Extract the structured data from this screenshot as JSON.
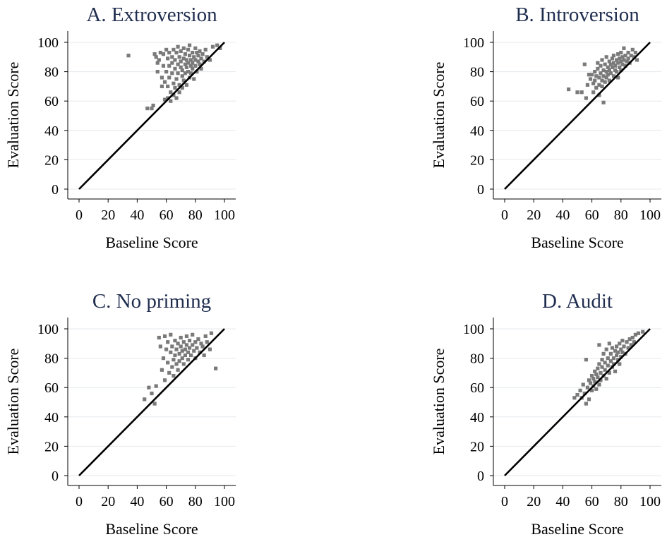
{
  "chart_data": [
    {
      "type": "scatter",
      "title": "A. Extroversion",
      "xlabel": "Baseline Score",
      "ylabel": "Evaluation Score",
      "xlim": [
        0,
        100
      ],
      "ylim": [
        0,
        100
      ],
      "xticks": [
        0,
        20,
        40,
        60,
        80,
        100
      ],
      "yticks": [
        0,
        20,
        40,
        60,
        80,
        100
      ],
      "grid": true,
      "reference_line": {
        "from": [
          0,
          0
        ],
        "to": [
          100,
          100
        ]
      },
      "points": [
        [
          34,
          91
        ],
        [
          47,
          55
        ],
        [
          50,
          55
        ],
        [
          51,
          57
        ],
        [
          52,
          92
        ],
        [
          53,
          90
        ],
        [
          54,
          86
        ],
        [
          54,
          80
        ],
        [
          55,
          88
        ],
        [
          56,
          93
        ],
        [
          57,
          70
        ],
        [
          57,
          76
        ],
        [
          58,
          92
        ],
        [
          58,
          84
        ],
        [
          59,
          61
        ],
        [
          59,
          73
        ],
        [
          60,
          80
        ],
        [
          60,
          95
        ],
        [
          61,
          62
        ],
        [
          61,
          70
        ],
        [
          61,
          89
        ],
        [
          62,
          84
        ],
        [
          62,
          76
        ],
        [
          62,
          93
        ],
        [
          63,
          66
        ],
        [
          63,
          60
        ],
        [
          64,
          86
        ],
        [
          64,
          79
        ],
        [
          64,
          90
        ],
        [
          65,
          72
        ],
        [
          65,
          64
        ],
        [
          65,
          95
        ],
        [
          66,
          82
        ],
        [
          66,
          88
        ],
        [
          66,
          69
        ],
        [
          67,
          75
        ],
        [
          67,
          93
        ],
        [
          67,
          62
        ],
        [
          68,
          85
        ],
        [
          68,
          79
        ],
        [
          68,
          97
        ],
        [
          69,
          90
        ],
        [
          69,
          71
        ],
        [
          69,
          66
        ],
        [
          70,
          83
        ],
        [
          70,
          87
        ],
        [
          70,
          94
        ],
        [
          71,
          77
        ],
        [
          71,
          81
        ],
        [
          71,
          69
        ],
        [
          72,
          89
        ],
        [
          72,
          96
        ],
        [
          72,
          74
        ],
        [
          73,
          85
        ],
        [
          73,
          79
        ],
        [
          73,
          92
        ],
        [
          74,
          83
        ],
        [
          74,
          88
        ],
        [
          74,
          71
        ],
        [
          75,
          95
        ],
        [
          75,
          80
        ],
        [
          75,
          86
        ],
        [
          76,
          91
        ],
        [
          76,
          76
        ],
        [
          76,
          98
        ],
        [
          77,
          84
        ],
        [
          77,
          88
        ],
        [
          77,
          79
        ],
        [
          78,
          93
        ],
        [
          78,
          82
        ],
        [
          78,
          86
        ],
        [
          79,
          90
        ],
        [
          79,
          75
        ],
        [
          80,
          96
        ],
        [
          80,
          84
        ],
        [
          80,
          88
        ],
        [
          81,
          80
        ],
        [
          81,
          93
        ],
        [
          82,
          87
        ],
        [
          82,
          91
        ],
        [
          83,
          85
        ],
        [
          83,
          94
        ],
        [
          84,
          82
        ],
        [
          84,
          89
        ],
        [
          85,
          92
        ],
        [
          86,
          87
        ],
        [
          87,
          95
        ],
        [
          88,
          90
        ],
        [
          90,
          88
        ],
        [
          92,
          97
        ],
        [
          95,
          98
        ],
        [
          97,
          96
        ]
      ]
    },
    {
      "type": "scatter",
      "title": "B. Introversion",
      "xlabel": "Baseline Score",
      "ylabel": "Evaluation Score",
      "xlim": [
        0,
        100
      ],
      "ylim": [
        0,
        100
      ],
      "xticks": [
        0,
        20,
        40,
        60,
        80,
        100
      ],
      "yticks": [
        0,
        20,
        40,
        60,
        80,
        100
      ],
      "grid": true,
      "reference_line": {
        "from": [
          0,
          0
        ],
        "to": [
          100,
          100
        ]
      },
      "points": [
        [
          44,
          68
        ],
        [
          50,
          66
        ],
        [
          53,
          66
        ],
        [
          55,
          85
        ],
        [
          56,
          62
        ],
        [
          57,
          71
        ],
        [
          58,
          78
        ],
        [
          59,
          75
        ],
        [
          60,
          78
        ],
        [
          61,
          72
        ],
        [
          61,
          66
        ],
        [
          62,
          74
        ],
        [
          62,
          80
        ],
        [
          63,
          77
        ],
        [
          63,
          69
        ],
        [
          64,
          82
        ],
        [
          64,
          86
        ],
        [
          65,
          71
        ],
        [
          65,
          76
        ],
        [
          65,
          64
        ],
        [
          66,
          79
        ],
        [
          66,
          84
        ],
        [
          67,
          74
        ],
        [
          67,
          88
        ],
        [
          67,
          70
        ],
        [
          68,
          81
        ],
        [
          68,
          77
        ],
        [
          68,
          59
        ],
        [
          69,
          85
        ],
        [
          69,
          73
        ],
        [
          70,
          80
        ],
        [
          70,
          76
        ],
        [
          70,
          90
        ],
        [
          71,
          83
        ],
        [
          71,
          78
        ],
        [
          72,
          87
        ],
        [
          72,
          81
        ],
        [
          72,
          74
        ],
        [
          73,
          85
        ],
        [
          73,
          79
        ],
        [
          74,
          89
        ],
        [
          74,
          83
        ],
        [
          75,
          77
        ],
        [
          75,
          86
        ],
        [
          75,
          91
        ],
        [
          76,
          81
        ],
        [
          76,
          84
        ],
        [
          77,
          88
        ],
        [
          77,
          80
        ],
        [
          78,
          86
        ],
        [
          78,
          92
        ],
        [
          78,
          76
        ],
        [
          79,
          83
        ],
        [
          79,
          89
        ],
        [
          80,
          87
        ],
        [
          80,
          93
        ],
        [
          80,
          81
        ],
        [
          81,
          85
        ],
        [
          81,
          90
        ],
        [
          82,
          88
        ],
        [
          82,
          96
        ],
        [
          83,
          84
        ],
        [
          83,
          91
        ],
        [
          84,
          87
        ],
        [
          85,
          93
        ],
        [
          85,
          89
        ],
        [
          86,
          86
        ],
        [
          87,
          91
        ],
        [
          88,
          95
        ],
        [
          89,
          90
        ],
        [
          90,
          93
        ],
        [
          91,
          88
        ]
      ]
    },
    {
      "type": "scatter",
      "title": "C. No priming",
      "xlabel": "Baseline Score",
      "ylabel": "Evaluation Score",
      "xlim": [
        0,
        100
      ],
      "ylim": [
        0,
        100
      ],
      "xticks": [
        0,
        20,
        40,
        60,
        80,
        100
      ],
      "yticks": [
        0,
        20,
        40,
        60,
        80,
        100
      ],
      "grid": true,
      "reference_line": {
        "from": [
          0,
          0
        ],
        "to": [
          100,
          100
        ]
      },
      "points": [
        [
          45,
          52
        ],
        [
          48,
          60
        ],
        [
          50,
          56
        ],
        [
          52,
          49
        ],
        [
          53,
          61
        ],
        [
          55,
          94
        ],
        [
          56,
          88
        ],
        [
          57,
          72
        ],
        [
          58,
          80
        ],
        [
          59,
          65
        ],
        [
          59,
          95
        ],
        [
          60,
          86
        ],
        [
          61,
          77
        ],
        [
          61,
          91
        ],
        [
          62,
          70
        ],
        [
          63,
          84
        ],
        [
          63,
          96
        ],
        [
          64,
          74
        ],
        [
          64,
          88
        ],
        [
          65,
          79
        ],
        [
          65,
          68
        ],
        [
          66,
          92
        ],
        [
          66,
          82
        ],
        [
          67,
          86
        ],
        [
          67,
          76
        ],
        [
          68,
          90
        ],
        [
          68,
          72
        ],
        [
          69,
          83
        ],
        [
          69,
          78
        ],
        [
          70,
          88
        ],
        [
          70,
          94
        ],
        [
          71,
          80
        ],
        [
          71,
          85
        ],
        [
          72,
          91
        ],
        [
          72,
          76
        ],
        [
          73,
          86
        ],
        [
          73,
          82
        ],
        [
          74,
          89
        ],
        [
          74,
          95
        ],
        [
          75,
          84
        ],
        [
          75,
          79
        ],
        [
          76,
          92
        ],
        [
          76,
          87
        ],
        [
          77,
          82
        ],
        [
          78,
          96
        ],
        [
          78,
          89
        ],
        [
          79,
          85
        ],
        [
          80,
          91
        ],
        [
          80,
          80
        ],
        [
          81,
          87
        ],
        [
          82,
          93
        ],
        [
          83,
          84
        ],
        [
          84,
          90
        ],
        [
          85,
          88
        ],
        [
          86,
          82
        ],
        [
          87,
          95
        ],
        [
          88,
          91
        ],
        [
          90,
          86
        ],
        [
          91,
          97
        ],
        [
          94,
          73
        ]
      ]
    },
    {
      "type": "scatter",
      "title": "D. Audit",
      "xlabel": "Baseline Score",
      "ylabel": "Evaluation Score",
      "xlim": [
        0,
        100
      ],
      "ylim": [
        0,
        100
      ],
      "xticks": [
        0,
        20,
        40,
        60,
        80,
        100
      ],
      "yticks": [
        0,
        20,
        40,
        60,
        80,
        100
      ],
      "grid": true,
      "reference_line": {
        "from": [
          0,
          0
        ],
        "to": [
          100,
          100
        ]
      },
      "points": [
        [
          48,
          53
        ],
        [
          50,
          55
        ],
        [
          52,
          58
        ],
        [
          53,
          53
        ],
        [
          54,
          62
        ],
        [
          55,
          56
        ],
        [
          56,
          49
        ],
        [
          56,
          79
        ],
        [
          57,
          60
        ],
        [
          58,
          65
        ],
        [
          58,
          52
        ],
        [
          59,
          63
        ],
        [
          60,
          58
        ],
        [
          60,
          68
        ],
        [
          61,
          66
        ],
        [
          61,
          61
        ],
        [
          62,
          71
        ],
        [
          62,
          64
        ],
        [
          63,
          69
        ],
        [
          63,
          59
        ],
        [
          64,
          73
        ],
        [
          64,
          67
        ],
        [
          65,
          62
        ],
        [
          65,
          76
        ],
        [
          65,
          89
        ],
        [
          66,
          70
        ],
        [
          66,
          65
        ],
        [
          67,
          74
        ],
        [
          67,
          79
        ],
        [
          68,
          68
        ],
        [
          68,
          83
        ],
        [
          69,
          72
        ],
        [
          69,
          77
        ],
        [
          70,
          66
        ],
        [
          70,
          86
        ],
        [
          71,
          75
        ],
        [
          71,
          80
        ],
        [
          72,
          70
        ],
        [
          72,
          90
        ],
        [
          73,
          78
        ],
        [
          73,
          83
        ],
        [
          74,
          74
        ],
        [
          74,
          87
        ],
        [
          75,
          80
        ],
        [
          75,
          76
        ],
        [
          76,
          85
        ],
        [
          76,
          71
        ],
        [
          77,
          82
        ],
        [
          77,
          88
        ],
        [
          78,
          79
        ],
        [
          78,
          84
        ],
        [
          79,
          90
        ],
        [
          79,
          76
        ],
        [
          80,
          86
        ],
        [
          80,
          81
        ],
        [
          81,
          92
        ],
        [
          81,
          84
        ],
        [
          82,
          88
        ],
        [
          83,
          83
        ],
        [
          84,
          91
        ],
        [
          85,
          87
        ],
        [
          86,
          93
        ],
        [
          87,
          89
        ],
        [
          88,
          94
        ],
        [
          89,
          91
        ],
        [
          90,
          96
        ],
        [
          92,
          97
        ],
        [
          95,
          98
        ]
      ]
    }
  ]
}
